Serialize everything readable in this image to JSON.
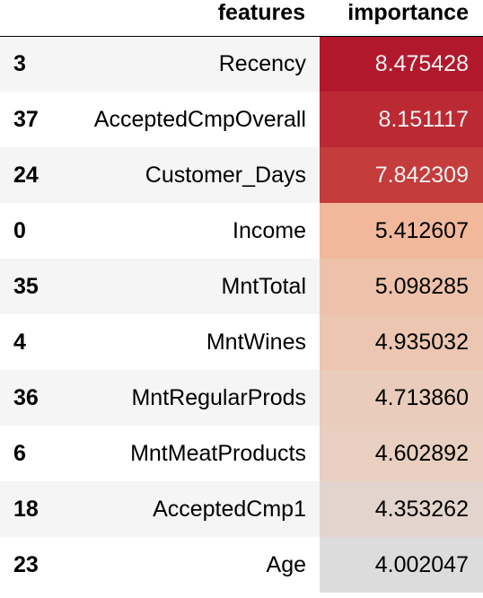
{
  "table": {
    "columns": {
      "index": "",
      "features": "features",
      "importance": "importance"
    },
    "rows": [
      {
        "index": "3",
        "feature": "Recency",
        "importance": "8.475428",
        "bg": "#b2182b",
        "fg": "#f1f1f1"
      },
      {
        "index": "37",
        "feature": "AcceptedCmpOverall",
        "importance": "8.151117",
        "bg": "#bb2a33",
        "fg": "#f1f1f1"
      },
      {
        "index": "24",
        "feature": "Customer_Days",
        "importance": "7.842309",
        "bg": "#c43c3c",
        "fg": "#f1f1f1"
      },
      {
        "index": "0",
        "feature": "Income",
        "importance": "5.412607",
        "bg": "#f1b89c",
        "fg": "#000000"
      },
      {
        "index": "35",
        "feature": "MntTotal",
        "importance": "5.098285",
        "bg": "#eec2aa",
        "fg": "#000000"
      },
      {
        "index": "4",
        "feature": "MntWines",
        "importance": "4.935032",
        "bg": "#ecc6b0",
        "fg": "#000000"
      },
      {
        "index": "36",
        "feature": "MntRegularProds",
        "importance": "4.713860",
        "bg": "#e9ccbb",
        "fg": "#000000"
      },
      {
        "index": "6",
        "feature": "MntMeatProducts",
        "importance": "4.602892",
        "bg": "#e8cfbf",
        "fg": "#000000"
      },
      {
        "index": "18",
        "feature": "AcceptedCmp1",
        "importance": "4.353262",
        "bg": "#e3d5cd",
        "fg": "#000000"
      },
      {
        "index": "23",
        "feature": "Age",
        "importance": "4.002047",
        "bg": "#dcdcdc",
        "fg": "#000000"
      }
    ]
  }
}
